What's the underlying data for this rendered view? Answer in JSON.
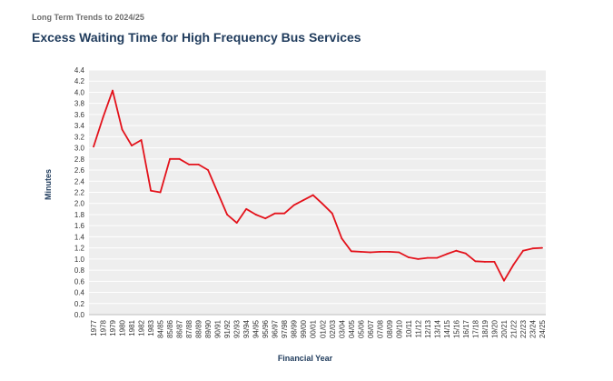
{
  "header": {
    "overline": "Long Term Trends to 2024/25",
    "title": "Excess Waiting Time for High Frequency Bus Services"
  },
  "colors": {
    "line": "#e3121b",
    "plot_background": "#eeeeee",
    "grid": "#ffffff",
    "title": "#1f3b5c"
  },
  "chart_data": {
    "type": "line",
    "title": "Excess Waiting Time for High Frequency Bus Services",
    "xlabel": "Financial Year",
    "ylabel": "Minutes",
    "ylim": [
      0,
      4.4
    ],
    "ytick_step": 0.2,
    "grid": true,
    "legend": "none",
    "categories": [
      "1977",
      "1978",
      "1979",
      "1980",
      "1981",
      "1982",
      "1983",
      "84/85",
      "85/86",
      "86/87",
      "87/88",
      "88/89",
      "89/90",
      "90/91",
      "91/92",
      "92/93",
      "93/94",
      "94/95",
      "95/96",
      "96/97",
      "97/98",
      "98/99",
      "99/00",
      "00/01",
      "01/02",
      "02/03",
      "03/04",
      "04/05",
      "05/06",
      "06/07",
      "07/08",
      "08/09",
      "09/10",
      "10/11",
      "11/12",
      "12/13",
      "13/14",
      "14/15",
      "15/16",
      "16/17",
      "17/18",
      "18/19",
      "19/20",
      "20/21",
      "21/22",
      "22/23",
      "23/24",
      "24/25"
    ],
    "series": [
      {
        "values": [
          3.02,
          3.55,
          4.03,
          3.33,
          3.04,
          3.14,
          2.23,
          2.2,
          2.8,
          2.8,
          2.7,
          2.7,
          2.6,
          2.2,
          1.8,
          1.65,
          1.9,
          1.8,
          1.73,
          1.82,
          1.82,
          1.97,
          2.06,
          2.15,
          1.99,
          1.82,
          1.37,
          1.14,
          1.13,
          1.12,
          1.13,
          1.13,
          1.12,
          1.03,
          1.0,
          1.02,
          1.02,
          1.09,
          1.15,
          1.1,
          0.96,
          0.95,
          0.95,
          0.61,
          0.9,
          1.15,
          1.19,
          1.2
        ]
      }
    ]
  }
}
